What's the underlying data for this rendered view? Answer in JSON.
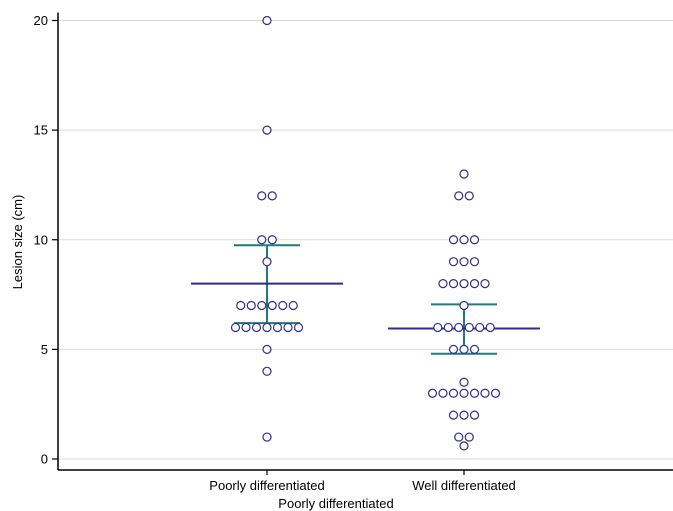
{
  "chart_data": {
    "type": "scatter",
    "subtype": "dot-strip with mean and error bars",
    "xlabel": "Poorly differentiated",
    "ylabel": "Lesion size (cm)",
    "ylim": [
      0,
      20
    ],
    "yticks": [
      0,
      5,
      10,
      15,
      20
    ],
    "grid": true,
    "categories": [
      "Poorly differentiated",
      "Well differentiated"
    ],
    "groups": [
      {
        "category": "Poorly differentiated",
        "values": [
          20,
          15,
          12,
          12,
          10,
          10,
          9,
          7,
          7,
          7,
          7,
          7,
          7,
          6,
          6,
          6,
          6,
          6,
          6,
          6,
          5,
          4,
          1
        ],
        "mean": 8.0,
        "error_low": 6.2,
        "error_high": 9.75
      },
      {
        "category": "Well differentiated",
        "values": [
          13,
          12,
          12,
          10,
          10,
          10,
          9,
          9,
          9,
          8,
          8,
          8,
          8,
          8,
          7,
          6,
          6,
          6,
          6,
          6,
          6,
          5,
          5,
          5,
          3.5,
          3,
          3,
          3,
          3,
          3,
          3,
          3,
          2,
          2,
          2,
          1,
          1,
          0.6
        ],
        "mean": 5.95,
        "error_low": 4.8,
        "error_high": 7.05
      }
    ],
    "colors": {
      "points": "#2e2e8a",
      "mean_line": "#2e2e8a",
      "error_bar": "#1f7a78",
      "grid": "#d9d9d9",
      "axis": "#000000"
    }
  }
}
